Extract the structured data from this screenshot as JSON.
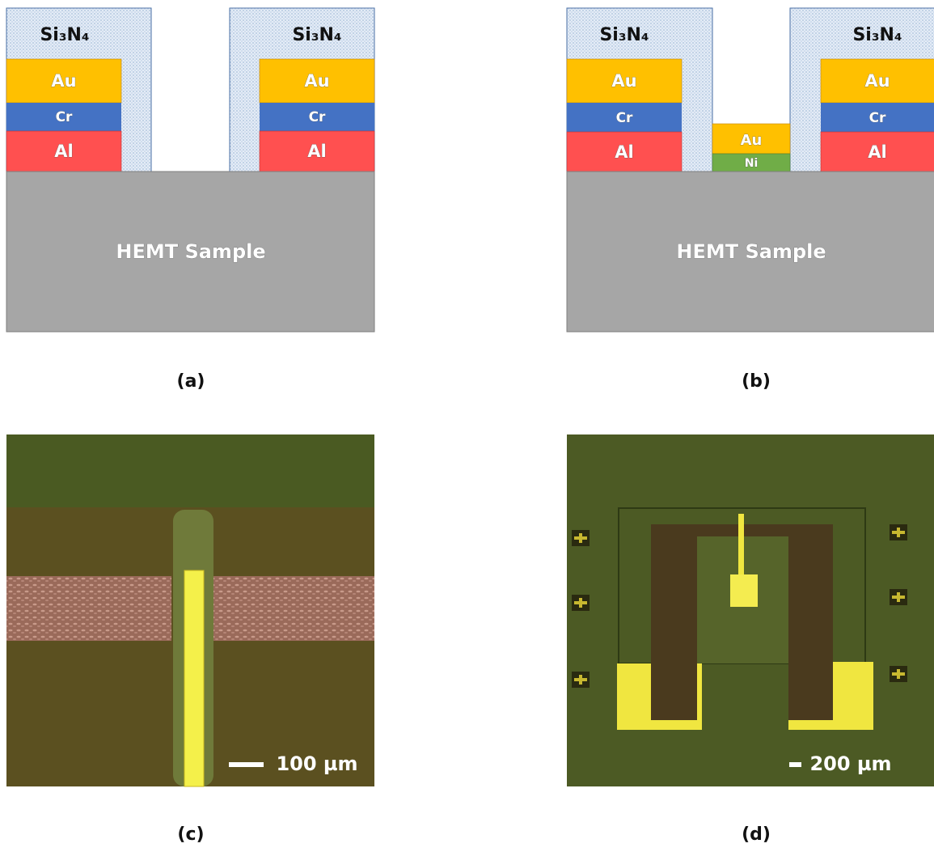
{
  "panels": [
    {
      "caption": "(a)",
      "sample": "HEMT Sample",
      "passivation": [
        "Si₃N₄",
        "Si₃N₄"
      ],
      "left_stack": [
        "Au",
        "Cr",
        "Al"
      ],
      "right_stack": [
        "Au",
        "Cr",
        "Al"
      ]
    },
    {
      "caption": "(b)",
      "sample": "HEMT Sample",
      "passivation": [
        "Si₃N₄",
        "Si₃N₄"
      ],
      "left_stack": [
        "Au",
        "Cr",
        "Al"
      ],
      "right_stack": [
        "Au",
        "Cr",
        "Al"
      ],
      "gate_stack": [
        "Au",
        "Ni"
      ]
    },
    {
      "caption": "(c)",
      "scale_bar": "100 µm"
    },
    {
      "caption": "(d)",
      "scale_bar": "200 µm"
    }
  ]
}
